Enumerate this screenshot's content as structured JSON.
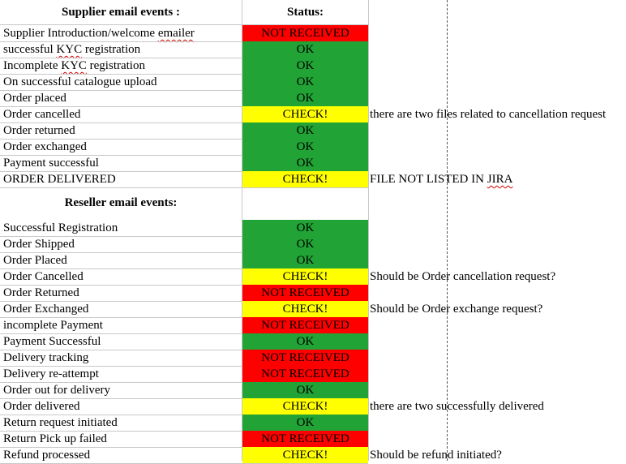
{
  "colors": {
    "OK": "#22a336",
    "NOT RECEIVED": "#ff0000",
    "CHECK!": "#ffff00"
  },
  "headers": {
    "supplier": "Supplier email events :",
    "status": "Status:",
    "reseller": "Reseller email events:"
  },
  "supplier_rows": [
    {
      "event": "Supplier Introduction/welcome emailer",
      "status": "NOT RECEIVED",
      "note": ""
    },
    {
      "event": "successful KYC registration",
      "status": "OK",
      "note": ""
    },
    {
      "event": "Incomplete KYC registration",
      "status": "OK",
      "note": ""
    },
    {
      "event": "On successful catalogue upload",
      "status": "OK",
      "note": ""
    },
    {
      "event": "Order placed",
      "status": "OK",
      "note": ""
    },
    {
      "event": "Order cancelled",
      "status": "CHECK!",
      "note": "there are two files related to cancellation request"
    },
    {
      "event": "Order returned",
      "status": "OK",
      "note": ""
    },
    {
      "event": "Order exchanged",
      "status": "OK",
      "note": ""
    },
    {
      "event": "Payment successful",
      "status": "OK",
      "note": ""
    },
    {
      "event": "ORDER DELIVERED",
      "status": "CHECK!",
      "note": "FILE NOT LISTED IN JIRA"
    }
  ],
  "reseller_rows": [
    {
      "event": "Successful Registration",
      "status": "OK",
      "note": ""
    },
    {
      "event": "Order Shipped",
      "status": "OK",
      "note": ""
    },
    {
      "event": "Order Placed",
      "status": "OK",
      "note": ""
    },
    {
      "event": "Order Cancelled",
      "status": "CHECK!",
      "note": "Should be Order cancellation request?"
    },
    {
      "event": "Order Returned",
      "status": "NOT RECEIVED",
      "note": ""
    },
    {
      "event": "Order Exchanged",
      "status": "CHECK!",
      "note": "Should be Order exchange request?"
    },
    {
      "event": "incomplete Payment",
      "status": "NOT RECEIVED",
      "note": ""
    },
    {
      "event": "Payment Successful",
      "status": "OK",
      "note": ""
    },
    {
      "event": "Delivery tracking",
      "status": "NOT RECEIVED",
      "note": ""
    },
    {
      "event": "Delivery re-attempt",
      "status": "NOT RECEIVED",
      "note": ""
    },
    {
      "event": "Order out for delivery",
      "status": "OK",
      "note": ""
    },
    {
      "event": "Order delivered",
      "status": "CHECK!",
      "note": "there are two successfully delivered"
    },
    {
      "event": "Return request initiated",
      "status": "OK",
      "note": ""
    },
    {
      "event": "Return Pick up failed",
      "status": "NOT RECEIVED",
      "note": ""
    },
    {
      "event": "Refund processed",
      "status": "CHECK!",
      "note": "Should be refund initiated?"
    }
  ]
}
